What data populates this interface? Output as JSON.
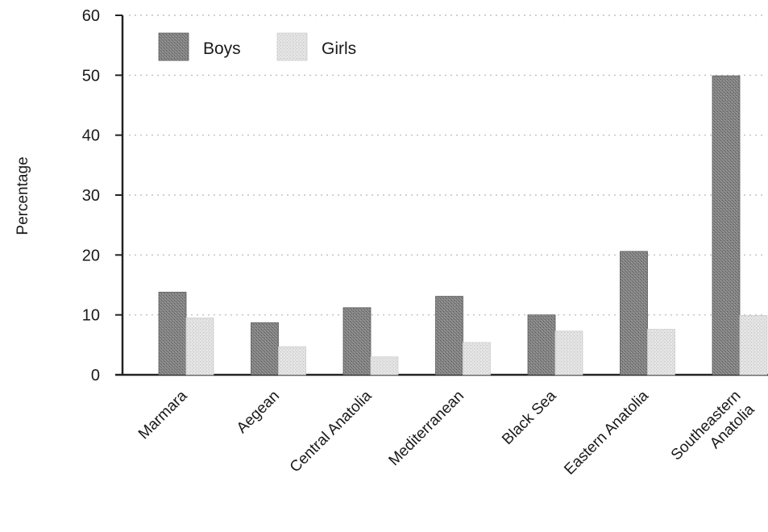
{
  "chart_data": {
    "type": "bar",
    "ylabel": "Percentage",
    "ylim": [
      0,
      60
    ],
    "yticks": [
      "0",
      "10",
      "20",
      "30",
      "40",
      "50",
      "60"
    ],
    "categories": [
      [
        "Marmara"
      ],
      [
        "Aegean"
      ],
      [
        "Central Anatolia"
      ],
      [
        "Mediterranean"
      ],
      [
        "Black Sea"
      ],
      [
        "Eastern Anatolia"
      ],
      [
        "Southeastern",
        "Anatolia"
      ]
    ],
    "series": [
      {
        "name": "Boys",
        "values": [
          13.8,
          8.7,
          11.2,
          13.1,
          10.0,
          20.6,
          49.9
        ]
      },
      {
        "name": "Girls",
        "values": [
          9.5,
          4.7,
          3.0,
          5.4,
          7.3,
          7.6,
          9.9
        ]
      }
    ],
    "grid": true,
    "legend_position": "top-left",
    "colors": {
      "boys": "#7d7d7d",
      "girls": "#dedede",
      "axis": "#222222",
      "grid": "#b5b5b5"
    }
  }
}
